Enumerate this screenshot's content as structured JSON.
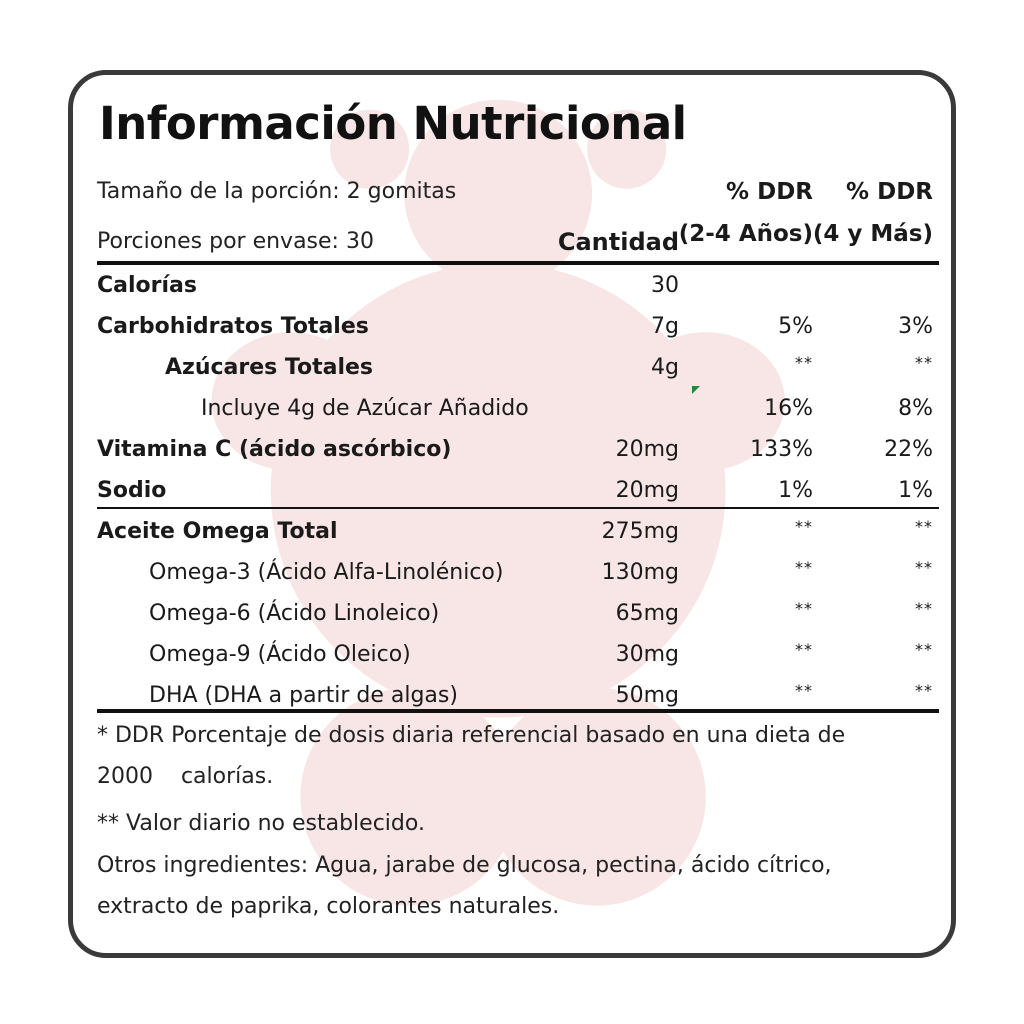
{
  "title": "Información Nutricional",
  "serving": {
    "size": "Tamaño de la porción: 2 gomitas",
    "per_container": "Porciones por envase: 30"
  },
  "headers": {
    "amount": "Cantidad",
    "ddr_kids_line1": "% DDR",
    "ddr_kids_line2": "(2-4 Años)",
    "ddr_adult_line1": "% DDR",
    "ddr_adult_line2": "(4 y Más)"
  },
  "rows": [
    {
      "name": "Calorías",
      "amount": "30",
      "ddr_kids": "",
      "ddr_adult": ""
    },
    {
      "name": "Carbohidratos Totales",
      "amount": "7g",
      "ddr_kids": "5%",
      "ddr_adult": "3%"
    },
    {
      "name": "Azúcares Totales",
      "amount": "4g",
      "ddr_kids": "**",
      "ddr_adult": "**"
    },
    {
      "name": "Incluye 4g de Azúcar Añadido",
      "amount": "",
      "ddr_kids": "16%",
      "ddr_adult": "8%"
    },
    {
      "name": "Vitamina C (ácido ascórbico)",
      "amount": "20mg",
      "ddr_kids": "133%",
      "ddr_adult": "22%"
    },
    {
      "name": "Sodio",
      "amount": "20mg",
      "ddr_kids": "1%",
      "ddr_adult": "1%"
    },
    {
      "name": "Aceite Omega Total",
      "amount": "275mg",
      "ddr_kids": "**",
      "ddr_adult": "**"
    },
    {
      "name": "Omega-3 (Ácido Alfa-Linolénico)",
      "amount": "130mg",
      "ddr_kids": "**",
      "ddr_adult": "**"
    },
    {
      "name": "Omega-6 (Ácido Linoleico)",
      "amount": "65mg",
      "ddr_kids": "**",
      "ddr_adult": "**"
    },
    {
      "name": "Omega-9 (Ácido Oleico)",
      "amount": "30mg",
      "ddr_kids": "**",
      "ddr_adult": "**"
    },
    {
      "name": "DHA (DHA a partir de algas)",
      "amount": "50mg",
      "ddr_kids": "**",
      "ddr_adult": "**"
    }
  ],
  "footnotes": {
    "ddr_line1": "* DDR Porcentaje de dosis diaria referencial basado en una dieta de",
    "ddr_line2": "2000    calorías.",
    "not_established": "** Valor diario no establecido.",
    "ingredients_line1": "Otros ingredientes: Agua, jarabe de glucosa, pectina, ácido cítrico,",
    "ingredients_line2": "extracto de paprika, colorantes naturales."
  },
  "colors": {
    "border": "#3a3a3a",
    "text": "#1a1a1a",
    "watermark": "#f6e4e4",
    "tick": "#1e8a3c"
  }
}
